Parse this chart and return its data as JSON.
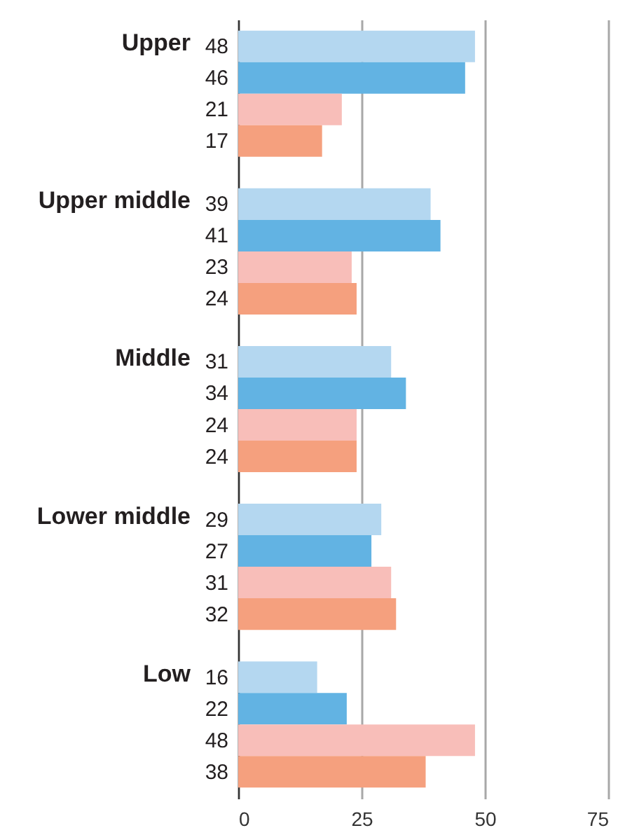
{
  "chart_data": {
    "type": "bar",
    "orientation": "horizontal",
    "categories": [
      "Upper",
      "Upper middle",
      "Middle",
      "Lower middle",
      "Low"
    ],
    "series": [
      {
        "color": "#b4d7f0",
        "values": [
          48,
          39,
          31,
          29,
          16
        ]
      },
      {
        "color": "#62b3e3",
        "values": [
          46,
          41,
          34,
          27,
          22
        ]
      },
      {
        "color": "#f8beb9",
        "values": [
          21,
          23,
          24,
          31,
          48
        ]
      },
      {
        "color": "#f5a07e",
        "values": [
          17,
          24,
          24,
          32,
          38
        ]
      }
    ],
    "xlim": [
      0,
      75
    ],
    "xticks": [
      0,
      25,
      50,
      75
    ],
    "grid": "x",
    "data_labels": true
  }
}
